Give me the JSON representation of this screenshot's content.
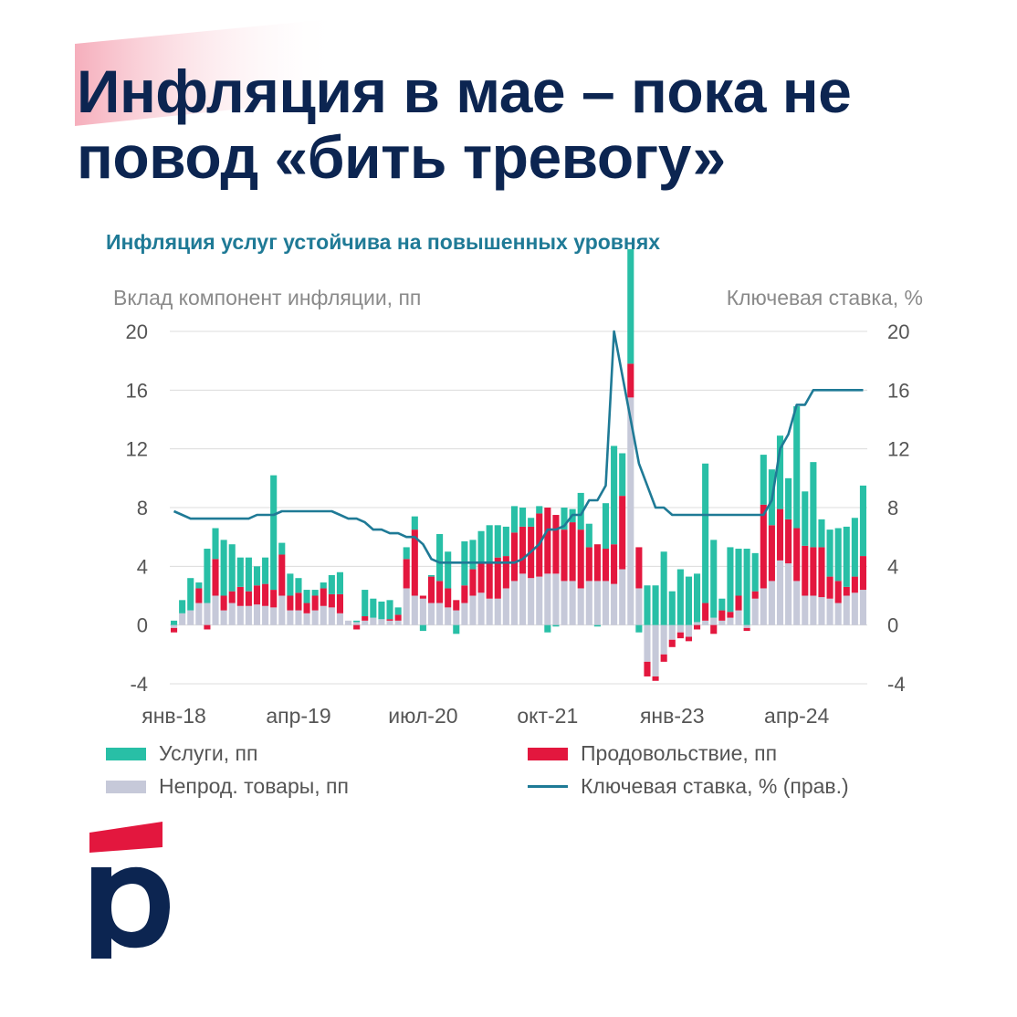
{
  "headline": {
    "line1": "Инфляция в мае – пока не",
    "line2": "повод «бить тревогу»"
  },
  "colors": {
    "navy": "#0c2551",
    "teal_title": "#1f7a96",
    "services": "#28bfa6",
    "food": "#e3173e",
    "nonfood": "#c6c9d9",
    "key_rate": "#1f7a96",
    "logo_red": "#e3173e"
  },
  "chart_data": {
    "type": "bar",
    "title": "Инфляция услуг устойчива на повышенных уровнях",
    "ylabel_left": "Вклад компонент инфляции, пп",
    "ylabel_right": "Ключевая ставка, %",
    "ylim": [
      -4,
      20
    ],
    "yticks": [
      "20",
      "16",
      "12",
      "8",
      "4",
      "0",
      "-4"
    ],
    "yticks_right": [
      "20",
      "16",
      "12",
      "8",
      "4",
      "0",
      "-4"
    ],
    "xticks": [
      "янв-18",
      "апр-19",
      "июл-20",
      "окт-21",
      "янв-23",
      "апр-24"
    ],
    "xtick_index": [
      0,
      15,
      30,
      45,
      60,
      75
    ],
    "series": [
      {
        "name": "Непрод. товары, пп",
        "key": "nonfood",
        "values": [
          -0.2,
          0.8,
          1.0,
          1.5,
          1.5,
          2.0,
          1.0,
          1.5,
          1.3,
          1.3,
          1.4,
          1.3,
          1.2,
          2.0,
          1.0,
          1.0,
          0.8,
          1.0,
          1.3,
          1.2,
          0.8,
          0.3,
          0.2,
          0.3,
          0.5,
          0.4,
          0.3,
          0.3,
          2.5,
          2.0,
          1.8,
          1.5,
          1.5,
          1.2,
          1.0,
          1.5,
          2.0,
          2.2,
          1.8,
          1.8,
          2.5,
          3.0,
          3.5,
          3.2,
          3.3,
          3.5,
          3.5,
          3.0,
          3.0,
          2.5,
          3.0,
          3.0,
          3.0,
          2.8,
          3.8,
          15.5,
          2.5,
          -2.5,
          -3.5,
          -2.0,
          -1.0,
          -0.5,
          -0.8,
          0.2,
          0.3,
          0.5,
          0.3,
          0.5,
          1.0,
          -0.2,
          1.8,
          2.5,
          3.0,
          4.4,
          4.2,
          3.0,
          2.0,
          2.0,
          1.9,
          1.8,
          1.5,
          2.0,
          2.2,
          2.4
        ]
      },
      {
        "name": "Продовольствие, пп",
        "key": "food",
        "values": [
          -0.3,
          0.0,
          0.0,
          1.0,
          -0.3,
          2.5,
          1.0,
          0.8,
          1.3,
          1.0,
          1.3,
          1.5,
          1.2,
          2.8,
          1.0,
          1.2,
          0.7,
          1.0,
          1.2,
          0.9,
          1.3,
          0.0,
          -0.3,
          0.3,
          0.0,
          0.0,
          0.1,
          0.4,
          2.0,
          4.5,
          0.2,
          1.8,
          1.5,
          1.3,
          0.7,
          1.2,
          1.8,
          2.0,
          2.4,
          2.8,
          2.2,
          3.3,
          3.2,
          3.5,
          4.3,
          4.5,
          4.0,
          3.5,
          4.0,
          4.0,
          2.3,
          2.5,
          2.2,
          2.7,
          5.0,
          2.3,
          2.8,
          -1.0,
          -0.3,
          -0.5,
          -0.5,
          -0.4,
          -0.3,
          -0.3,
          1.2,
          -0.6,
          0.7,
          0.4,
          1.0,
          -0.2,
          0.5,
          5.7,
          3.8,
          3.5,
          3.0,
          3.6,
          3.4,
          3.3,
          3.4,
          1.5,
          1.5,
          0.6,
          1.1,
          2.3
        ]
      },
      {
        "name": "Услуги, пп",
        "key": "services",
        "values": [
          0.3,
          0.9,
          2.2,
          0.4,
          3.7,
          2.1,
          3.8,
          3.2,
          2.0,
          2.3,
          1.3,
          1.8,
          7.8,
          0.8,
          1.5,
          1.0,
          0.9,
          0.4,
          0.4,
          1.3,
          1.5,
          0.0,
          0.1,
          1.8,
          1.3,
          1.2,
          1.3,
          0.5,
          0.8,
          0.9,
          -0.4,
          0.1,
          3.2,
          2.5,
          -0.6,
          3.0,
          2.0,
          2.2,
          2.6,
          2.2,
          2.0,
          1.8,
          1.3,
          0.6,
          0.5,
          -0.5,
          -0.1,
          1.5,
          0.9,
          2.5,
          1.6,
          -0.1,
          3.1,
          6.7,
          2.9,
          7.8,
          -0.5,
          2.7,
          2.7,
          5.0,
          2.3,
          3.8,
          3.3,
          3.3,
          9.5,
          5.3,
          0.8,
          4.4,
          3.2,
          5.2,
          2.6,
          3.4,
          3.8,
          5.0,
          2.8,
          8.3,
          3.7,
          5.8,
          1.9,
          3.2,
          3.6,
          4.1,
          4.0,
          4.8
        ]
      },
      {
        "name": "Ключевая ставка, % (прав.)",
        "key": "key_rate",
        "type": "line",
        "values": [
          7.75,
          7.5,
          7.25,
          7.25,
          7.25,
          7.25,
          7.25,
          7.25,
          7.25,
          7.25,
          7.5,
          7.5,
          7.5,
          7.75,
          7.75,
          7.75,
          7.75,
          7.75,
          7.75,
          7.75,
          7.5,
          7.25,
          7.25,
          7.0,
          6.5,
          6.5,
          6.25,
          6.25,
          6.0,
          6.0,
          5.5,
          4.5,
          4.25,
          4.25,
          4.25,
          4.25,
          4.25,
          4.25,
          4.25,
          4.25,
          4.25,
          4.25,
          4.5,
          5.0,
          5.5,
          6.5,
          6.5,
          6.75,
          7.5,
          7.5,
          8.5,
          8.5,
          9.5,
          20.0,
          17.0,
          14.0,
          11.0,
          9.5,
          8.0,
          8.0,
          7.5,
          7.5,
          7.5,
          7.5,
          7.5,
          7.5,
          7.5,
          7.5,
          7.5,
          7.5,
          7.5,
          7.5,
          8.5,
          12.0,
          13.0,
          15.0,
          15.0,
          16.0,
          16.0,
          16.0,
          16.0,
          16.0,
          16.0,
          16.0
        ]
      }
    ],
    "legend": [
      {
        "label": "Услуги, пп",
        "key": "services"
      },
      {
        "label": "Продовольствие, пп",
        "key": "food"
      },
      {
        "label": "Непрод. товары, пп",
        "key": "nonfood"
      },
      {
        "label": "Ключевая ставка, % (прав.)",
        "key": "key_rate"
      }
    ]
  }
}
